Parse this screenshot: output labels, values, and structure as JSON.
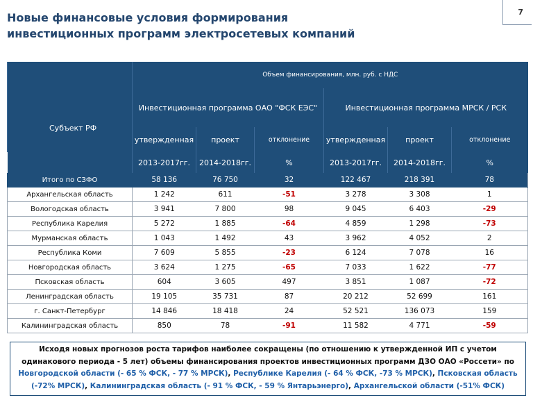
{
  "header": {
    "title_line1": "Новые финансовые условия формирования",
    "title_line2": "инвестиционных программ электросетевых компаний",
    "page_number": "7"
  },
  "table": {
    "volume_header": "Объем финансирования, млн. руб. с НДС",
    "subject_header": "Субъект РФ",
    "program_fsk": "Инвестиционная программа ОАО \"ФСК ЕЭС\"",
    "program_mrsk": "Инвестиционная программа МРСК / РСК",
    "col_approved": "утвержденная",
    "col_project": "проект",
    "col_deviation": "отклонение",
    "unit_approved": "2013-2017гг.",
    "unit_project": "2014-2018гг.",
    "unit_percent": "%",
    "rows": [
      {
        "region": "Итого по СЗФО",
        "fsk_a": "58 136",
        "fsk_p": "76 750",
        "fsk_d": "32",
        "mr_a": "122 467",
        "mr_p": "218 391",
        "mr_d": "78"
      },
      {
        "region": "Архангельская область",
        "fsk_a": "1 242",
        "fsk_p": "611",
        "fsk_d": "-51",
        "mr_a": "3 278",
        "mr_p": "3 308",
        "mr_d": "1"
      },
      {
        "region": "Вологодская область",
        "fsk_a": "3 941",
        "fsk_p": "7 800",
        "fsk_d": "98",
        "mr_a": "9 045",
        "mr_p": "6 403",
        "mr_d": "-29"
      },
      {
        "region": "Республика Карелия",
        "fsk_a": "5 272",
        "fsk_p": "1 885",
        "fsk_d": "-64",
        "mr_a": "4 859",
        "mr_p": "1 298",
        "mr_d": "-73"
      },
      {
        "region": "Мурманская область",
        "fsk_a": "1 043",
        "fsk_p": "1 492",
        "fsk_d": "43",
        "mr_a": "3 962",
        "mr_p": "4 052",
        "mr_d": "2"
      },
      {
        "region": "Республика Коми",
        "fsk_a": "7 609",
        "fsk_p": "5 855",
        "fsk_d": "-23",
        "mr_a": "6 124",
        "mr_p": "7 078",
        "mr_d": "16"
      },
      {
        "region": "Новгородская область",
        "fsk_a": "3 624",
        "fsk_p": "1 275",
        "fsk_d": "-65",
        "mr_a": "7 033",
        "mr_p": "1 622",
        "mr_d": "-77"
      },
      {
        "region": "Псковская область",
        "fsk_a": "604",
        "fsk_p": "3 605",
        "fsk_d": "497",
        "mr_a": "3 851",
        "mr_p": "1 087",
        "mr_d": "-72"
      },
      {
        "region": "Ленинградская область",
        "fsk_a": "19 105",
        "fsk_p": "35 731",
        "fsk_d": "87",
        "mr_a": "20 212",
        "mr_p": "52 699",
        "mr_d": "161"
      },
      {
        "region": "г. Санкт-Петербург",
        "fsk_a": "14 846",
        "fsk_p": "18 418",
        "fsk_d": "24",
        "mr_a": "52 521",
        "mr_p": "136 073",
        "mr_d": "159"
      },
      {
        "region": "Калининградская область",
        "fsk_a": "850",
        "fsk_p": "78",
        "fsk_d": "-91",
        "mr_a": "11 582",
        "mr_p": "4 771",
        "mr_d": "-59"
      }
    ]
  },
  "note": {
    "part1": "Исходя новых прогнозов роста тарифов наиболее сокращены (по отношению к утвержденной ИП с учетом одинакового периода - 5 лет) объемы финансирования проектов инвестиционных программ ДЗО ОАО «Россети» по",
    "novgorod": "Новгородской области (- 65 % ФСК, - 77 % МРСК)",
    "sep1": ",",
    "karelia": "Республике Карелия (- 64 % ФСК, -73 % МРСК)",
    "sep2": ",",
    "pskov": "Псковская область (-72% МРСК)",
    "sep3": ",",
    "kaliningrad": "Калининградская область (- 91 % ФСК, - 59 % Янтарьэнерго)",
    "sep4": ",",
    "arkhangelsk": "Архангельской области (-51% ФСК)"
  },
  "colors": {
    "header_bg": "#1f4e79",
    "negative": "#c00000",
    "highlight_text": "#1f5fa8"
  }
}
